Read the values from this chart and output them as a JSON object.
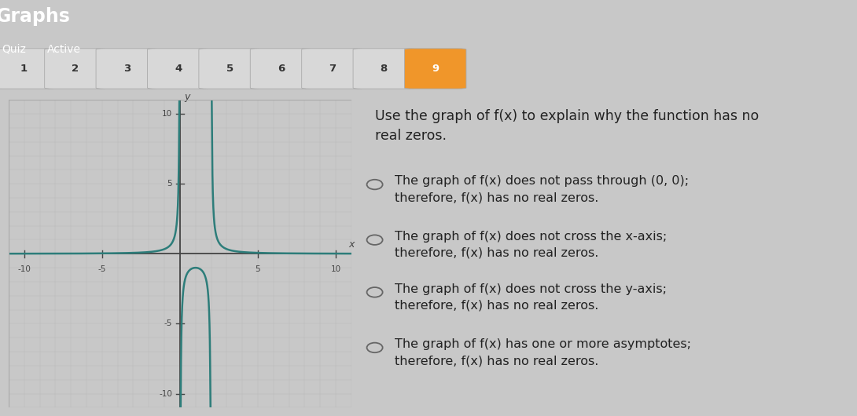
{
  "question_numbers": [
    "1",
    "2",
    "3",
    "4",
    "5",
    "6",
    "7",
    "8",
    "9"
  ],
  "active_number": "9",
  "question_text": "Use the graph of f(x) to explain why the function has no\nreal zeros.",
  "options": [
    "The graph of f(x) does not pass through (0, 0);\ntherefore, f(x) has no real zeros.",
    "The graph of f(x) does not cross the x-axis;\ntherefore, f(x) has no real zeros.",
    "The graph of f(x) does not cross the y-axis;\ntherefore, f(x) has no real zeros.",
    "The graph of f(x) has one or more asymptotes;\ntherefore, f(x) has no real zeros."
  ],
  "graph_color": "#2d7d7a",
  "grid_color": "#bbbbbb",
  "axis_color": "#444444",
  "xlim": [
    -11,
    11
  ],
  "ylim": [
    -11,
    11
  ],
  "xtick_vals": [
    -10,
    -5,
    5,
    10
  ],
  "ytick_vals": [
    -10,
    -5,
    5,
    10
  ],
  "header_bg": "#606060",
  "header_title_color": "#ffffff",
  "btn_active_bg": "#f0962a",
  "btn_normal_bg": "#d8d8d8",
  "btn_normal_tc": "#333333",
  "btn_active_tc": "#ffffff",
  "graph_panel_bg": "#ffffff",
  "right_panel_bg": "#f8f8f8",
  "fig_bg": "#c8c8c8",
  "option_circle_color": "#666666",
  "option_text_color": "#222222",
  "question_text_color": "#222222"
}
